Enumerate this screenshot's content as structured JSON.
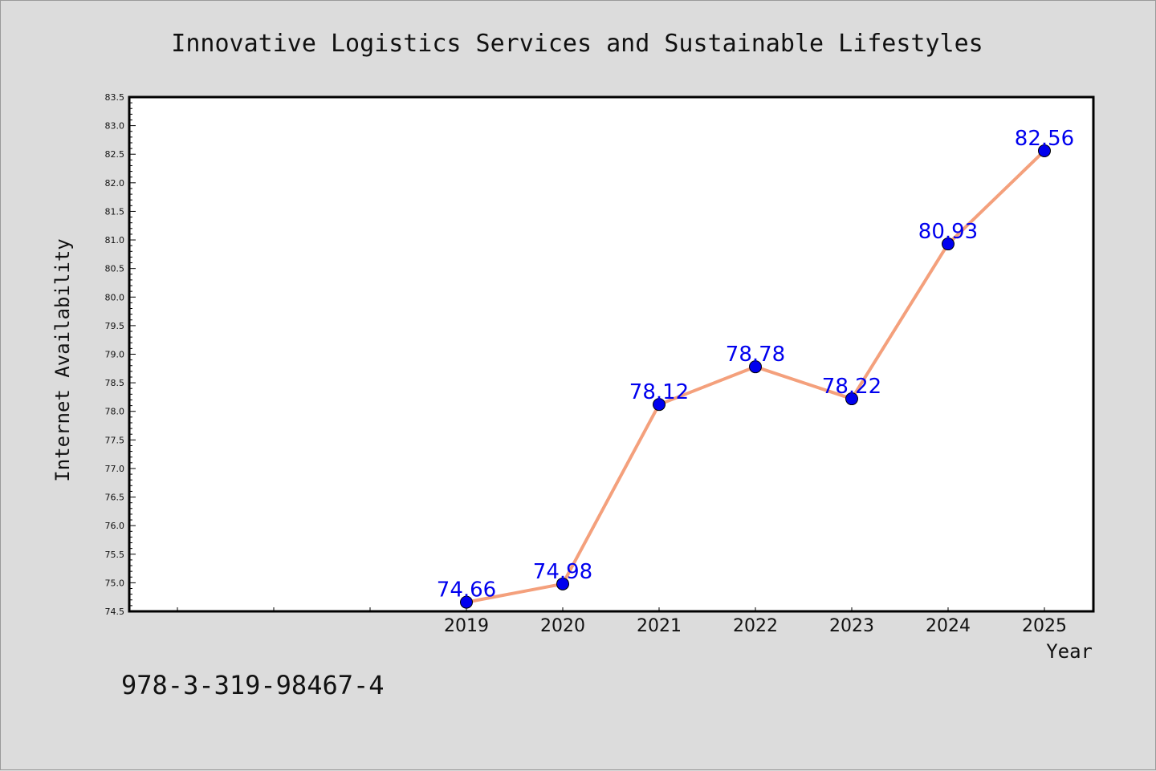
{
  "chart_data": {
    "type": "line",
    "title": "Innovative Logistics Services and Sustainable Lifestyles",
    "xlabel": "Year",
    "ylabel": "Internet Availability",
    "categories": [
      "2019",
      "2020",
      "2021",
      "2022",
      "2023",
      "2024",
      "2025"
    ],
    "series": [
      {
        "values": [
          74.66,
          74.98,
          78.12,
          78.78,
          78.22,
          80.93,
          82.56
        ],
        "labels": [
          "74.66",
          "74.98",
          "78.12",
          "78.78",
          "78.22",
          "80.93",
          "82.56"
        ],
        "line_color": "#f4a07c",
        "marker_color": "#0000ee"
      }
    ],
    "ylim": [
      74.5,
      83.5
    ],
    "y_ticks": [
      "74.5",
      "75.0",
      "75.5",
      "76.0",
      "76.5",
      "77.0",
      "77.5",
      "78.0",
      "78.5",
      "79.0",
      "79.5",
      "80.0",
      "80.5",
      "81.0",
      "81.5",
      "82.0",
      "82.5",
      "83.0",
      "83.5"
    ],
    "grid": false,
    "legend": "none"
  },
  "footer_text": "978-3-319-98467-4",
  "colors": {
    "background": "#dcdcdc",
    "plot_background": "#ffffff",
    "data_label": "#0000ee"
  }
}
